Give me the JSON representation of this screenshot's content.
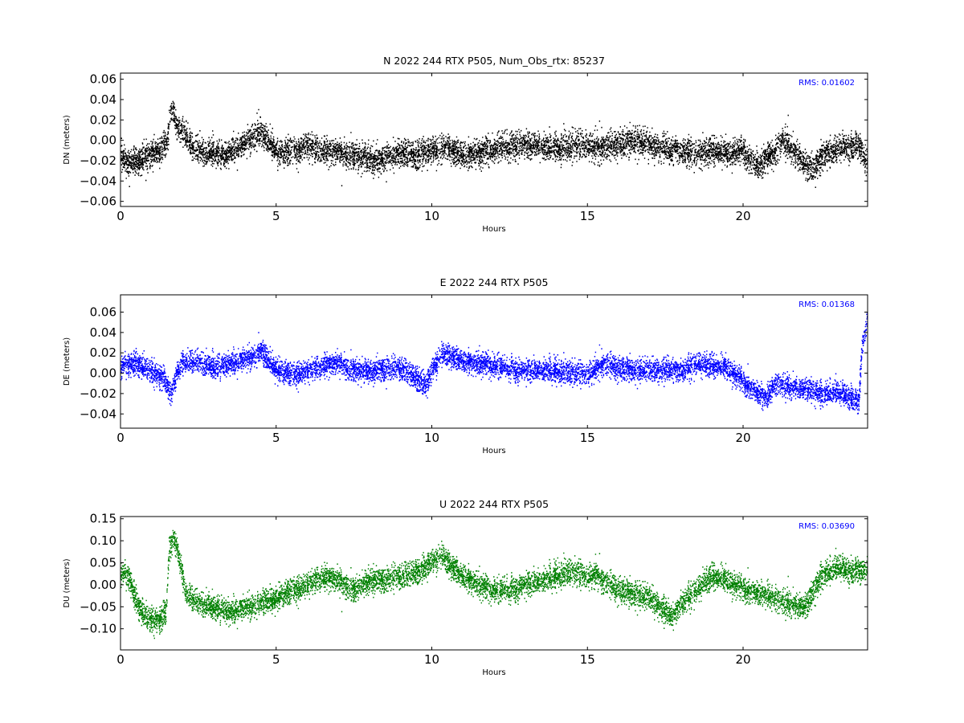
{
  "figure": {
    "panels": [
      {
        "id": "north",
        "title": "N 2022 244 RTX  P505, Num_Obs_rtx: 85237",
        "xlabel": "Hours",
        "ylabel": "DN (meters)",
        "rms_text": "RMS:  0.01602",
        "color": "#000000"
      },
      {
        "id": "east",
        "title": "E 2022 244 RTX  P505",
        "xlabel": "Hours",
        "ylabel": "DE (meters)",
        "rms_text": "RMS:  0.01368",
        "color": "#0000ff"
      },
      {
        "id": "up",
        "title": "U 2022 244 RTX  P505",
        "xlabel": "Hours",
        "ylabel": "DU (meters)",
        "rms_text": "RMS:  0.03690",
        "color": "#008000"
      }
    ],
    "rms_color": "#0000ff"
  },
  "chart_data": [
    {
      "type": "scatter",
      "title": "N 2022 244 RTX  P505, Num_Obs_rtx: 85237",
      "xlabel": "Hours",
      "ylabel": "DN (meters)",
      "xlim": [
        0,
        24
      ],
      "ylim": [
        -0.065,
        0.066
      ],
      "xticks": [
        "0",
        "5",
        "10",
        "15",
        "20"
      ],
      "xtick_values": [
        0,
        5,
        10,
        15,
        20
      ],
      "yticks": [
        "0.06",
        "0.04",
        "0.02",
        "0.00",
        "−0.02",
        "−0.04",
        "−0.06"
      ],
      "ytick_values": [
        0.06,
        0.04,
        0.02,
        0.0,
        -0.02,
        -0.04,
        -0.06
      ],
      "annotation": "RMS:  0.01602",
      "series": [
        {
          "color": "#000000",
          "x": [
            0,
            0.25,
            0.5,
            0.75,
            1.0,
            1.25,
            1.5,
            1.6,
            1.7,
            1.8,
            2.0,
            2.25,
            2.5,
            2.75,
            3.0,
            3.25,
            3.5,
            3.75,
            4.0,
            4.25,
            4.5,
            4.75,
            5.0,
            5.25,
            5.5,
            5.75,
            6.0,
            6.5,
            7.0,
            7.5,
            8.0,
            8.25,
            8.5,
            9.0,
            9.5,
            10.0,
            10.5,
            11.0,
            11.5,
            12.0,
            12.5,
            13.0,
            13.5,
            14.0,
            14.5,
            15.0,
            15.5,
            16.0,
            16.5,
            17.0,
            17.5,
            18.0,
            18.5,
            19.0,
            19.5,
            20.0,
            20.25,
            20.5,
            20.75,
            21.0,
            21.25,
            21.5,
            21.75,
            22.0,
            22.25,
            22.5,
            23.0,
            23.5,
            23.75,
            24.0
          ],
          "y": [
            -0.015,
            -0.022,
            -0.02,
            -0.018,
            -0.012,
            -0.01,
            0.0,
            0.03,
            0.028,
            0.012,
            0.01,
            -0.005,
            -0.01,
            -0.012,
            -0.012,
            -0.015,
            -0.01,
            -0.008,
            -0.002,
            0.005,
            0.008,
            0.0,
            -0.01,
            -0.012,
            -0.01,
            -0.008,
            -0.006,
            -0.01,
            -0.012,
            -0.014,
            -0.018,
            -0.02,
            -0.018,
            -0.012,
            -0.015,
            -0.01,
            -0.008,
            -0.014,
            -0.012,
            -0.008,
            -0.005,
            -0.004,
            -0.006,
            -0.008,
            -0.005,
            -0.004,
            -0.006,
            -0.002,
            0.0,
            -0.004,
            -0.008,
            -0.01,
            -0.012,
            -0.01,
            -0.012,
            -0.01,
            -0.02,
            -0.025,
            -0.015,
            -0.012,
            0.002,
            -0.005,
            -0.015,
            -0.025,
            -0.03,
            -0.015,
            -0.008,
            -0.005,
            -0.006,
            -0.025
          ],
          "spread": 0.012
        }
      ]
    },
    {
      "type": "scatter",
      "title": "E 2022 244 RTX  P505",
      "xlabel": "Hours",
      "ylabel": "DE (meters)",
      "xlim": [
        0,
        24
      ],
      "ylim": [
        -0.054,
        0.077
      ],
      "xticks": [
        "0",
        "5",
        "10",
        "15",
        "20"
      ],
      "xtick_values": [
        0,
        5,
        10,
        15,
        20
      ],
      "yticks": [
        "0.06",
        "0.04",
        "0.02",
        "0.00",
        "−0.02",
        "−0.04"
      ],
      "ytick_values": [
        0.06,
        0.04,
        0.02,
        0.0,
        -0.02,
        -0.04
      ],
      "annotation": "RMS:  0.01368",
      "series": [
        {
          "color": "#0000ff",
          "x": [
            0,
            0.5,
            1.0,
            1.4,
            1.6,
            1.8,
            2.0,
            2.5,
            3.0,
            3.5,
            4.0,
            4.5,
            5.0,
            5.5,
            6.0,
            6.5,
            7.0,
            7.5,
            8.0,
            8.5,
            9.0,
            9.5,
            9.8,
            10.0,
            10.25,
            10.5,
            11.0,
            11.5,
            12.0,
            12.5,
            13.0,
            13.5,
            14.0,
            14.5,
            15.0,
            15.25,
            15.5,
            16.0,
            16.5,
            17.0,
            17.5,
            18.0,
            18.5,
            19.0,
            19.5,
            20.0,
            20.5,
            20.75,
            21.0,
            21.5,
            22.0,
            22.5,
            23.0,
            23.5,
            23.7,
            23.8,
            24.0
          ],
          "y": [
            0.008,
            0.01,
            0.002,
            -0.005,
            -0.02,
            0.0,
            0.012,
            0.012,
            0.006,
            0.01,
            0.014,
            0.022,
            0.004,
            0.0,
            0.002,
            0.008,
            0.01,
            0.004,
            0.002,
            0.004,
            0.005,
            -0.005,
            -0.012,
            0.002,
            0.018,
            0.018,
            0.012,
            0.01,
            0.008,
            0.005,
            0.002,
            0.004,
            0.002,
            0.0,
            0.0,
            0.005,
            0.01,
            0.006,
            0.004,
            0.003,
            0.004,
            0.003,
            0.01,
            0.008,
            0.005,
            -0.008,
            -0.02,
            -0.025,
            -0.01,
            -0.012,
            -0.015,
            -0.02,
            -0.018,
            -0.025,
            -0.03,
            0.025,
            0.06
          ],
          "spread": 0.01
        }
      ]
    },
    {
      "type": "scatter",
      "title": "U 2022 244 RTX  P505",
      "xlabel": "Hours",
      "ylabel": "DU (meters)",
      "xlim": [
        0,
        24
      ],
      "ylim": [
        -0.148,
        0.155
      ],
      "xticks": [
        "0",
        "5",
        "10",
        "15",
        "20"
      ],
      "xtick_values": [
        0,
        5,
        10,
        15,
        20
      ],
      "yticks": [
        "0.15",
        "0.10",
        "0.05",
        "0.00",
        "−0.05",
        "−0.10"
      ],
      "ytick_values": [
        0.15,
        0.1,
        0.05,
        0.0,
        -0.05,
        -0.1
      ],
      "annotation": "RMS:  0.03690",
      "series": [
        {
          "color": "#008000",
          "x": [
            0,
            0.25,
            0.5,
            0.75,
            1.0,
            1.25,
            1.45,
            1.55,
            1.7,
            1.9,
            2.1,
            2.5,
            3.0,
            3.5,
            4.0,
            4.5,
            5.0,
            5.5,
            6.0,
            6.5,
            7.0,
            7.5,
            8.0,
            8.5,
            9.0,
            9.5,
            10.0,
            10.25,
            10.5,
            11.0,
            11.5,
            12.0,
            12.5,
            13.0,
            13.5,
            14.0,
            14.5,
            15.0,
            15.25,
            15.5,
            16.0,
            16.5,
            17.0,
            17.5,
            17.75,
            18.0,
            18.5,
            19.0,
            19.5,
            20.0,
            20.5,
            21.0,
            21.5,
            22.0,
            22.5,
            23.0,
            23.5,
            24.0
          ],
          "y": [
            0.03,
            0.02,
            -0.04,
            -0.07,
            -0.08,
            -0.075,
            -0.06,
            0.08,
            0.11,
            0.05,
            -0.02,
            -0.04,
            -0.05,
            -0.06,
            -0.05,
            -0.04,
            -0.03,
            -0.01,
            0.0,
            0.02,
            0.01,
            -0.01,
            0.01,
            0.01,
            0.02,
            0.03,
            0.05,
            0.07,
            0.05,
            0.02,
            0.0,
            -0.01,
            -0.01,
            0.0,
            0.01,
            0.02,
            0.03,
            0.02,
            0.03,
            0.01,
            -0.01,
            -0.02,
            -0.03,
            -0.06,
            -0.07,
            -0.04,
            -0.01,
            0.02,
            0.01,
            -0.01,
            -0.02,
            -0.03,
            -0.04,
            -0.05,
            0.02,
            0.04,
            0.03,
            0.04
          ],
          "spread": 0.025
        }
      ]
    }
  ]
}
